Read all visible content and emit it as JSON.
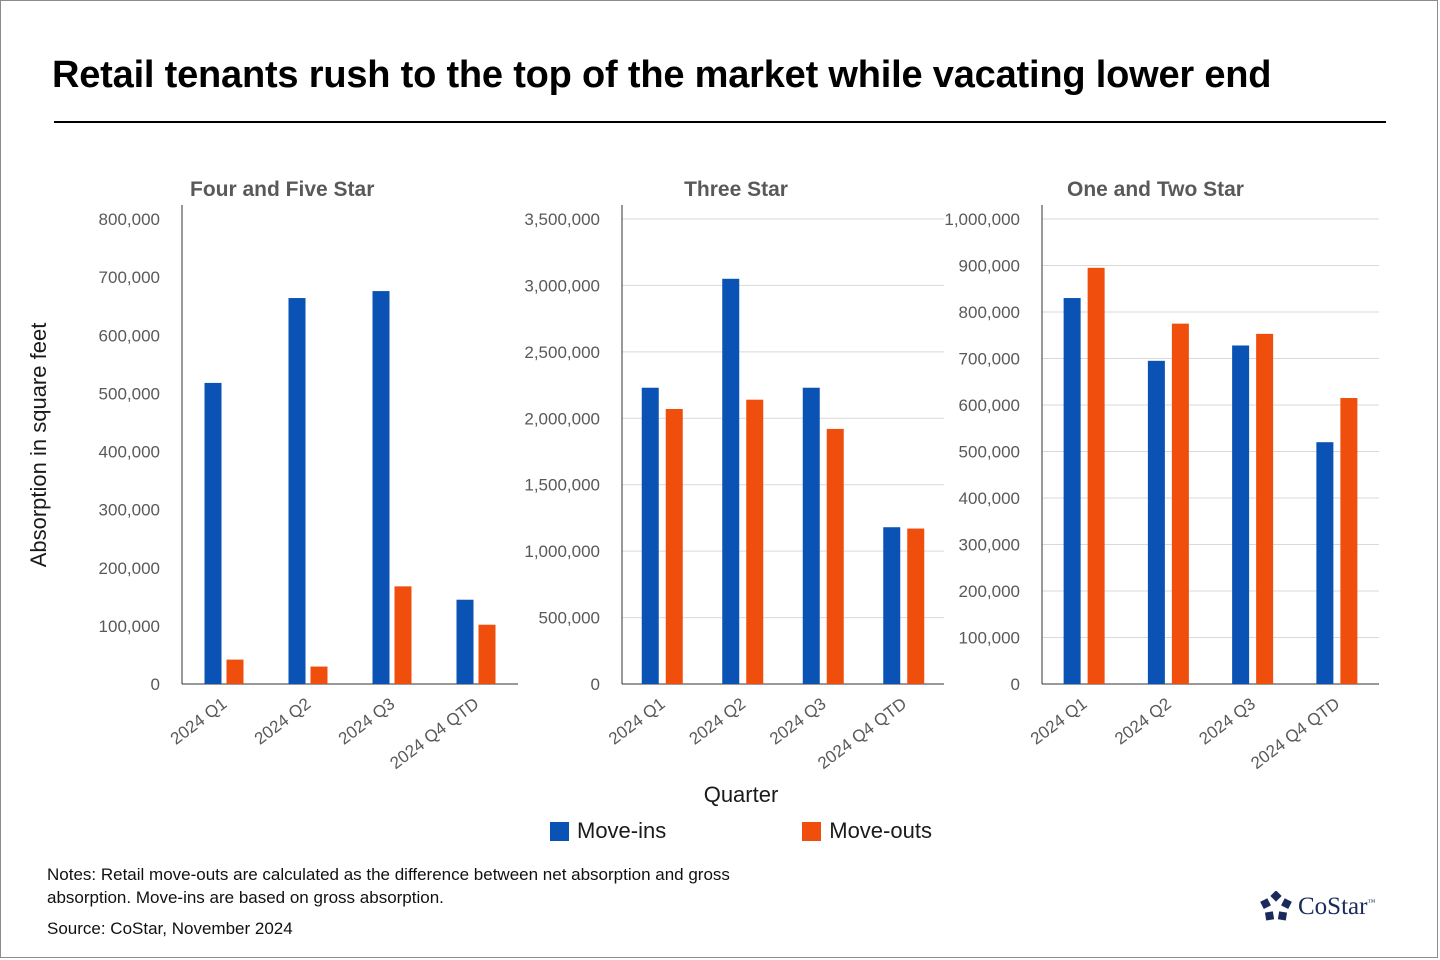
{
  "title": "Retail tenants rush to the top of the market while vacating lower end",
  "ylabel": "Absorption in square feet",
  "xlabel": "Quarter",
  "legend": [
    {
      "name": "Move-ins",
      "color": "#0a52b4"
    },
    {
      "name": "Move-outs",
      "color": "#f04e0c"
    }
  ],
  "notes": "Notes: Retail move-outs are calculated as the difference between net absorption and gross absorption. Move-ins are based on gross absorption.",
  "source": "Source: CoStar, November 2024",
  "logo": {
    "text": "CoStar",
    "tm": "™"
  },
  "chart_data": [
    {
      "type": "bar",
      "title": "Four and Five Star",
      "categories": [
        "2024 Q1",
        "2024 Q2",
        "2024 Q3",
        "2024 Q4 QTD"
      ],
      "series": [
        {
          "name": "Move-ins",
          "values": [
            518000,
            664000,
            676000,
            145000
          ]
        },
        {
          "name": "Move-outs",
          "values": [
            42000,
            30000,
            168000,
            102000
          ]
        }
      ],
      "ylim": [
        0,
        800000
      ],
      "yticks": [
        0,
        100000,
        200000,
        300000,
        400000,
        500000,
        600000,
        700000,
        800000
      ],
      "ytick_labels": [
        "0",
        "100,000",
        "200,000",
        "300,000",
        "400,000",
        "500,000",
        "600,000",
        "700,000",
        "800,000"
      ],
      "grid": false
    },
    {
      "type": "bar",
      "title": "Three Star",
      "categories": [
        "2024 Q1",
        "2024 Q2",
        "2024 Q3",
        "2024 Q4 QTD"
      ],
      "series": [
        {
          "name": "Move-ins",
          "values": [
            2230000,
            3050000,
            2230000,
            1180000
          ]
        },
        {
          "name": "Move-outs",
          "values": [
            2070000,
            2140000,
            1920000,
            1170000
          ]
        }
      ],
      "ylim": [
        0,
        3500000
      ],
      "yticks": [
        0,
        500000,
        1000000,
        1500000,
        2000000,
        2500000,
        3000000,
        3500000
      ],
      "ytick_labels": [
        "0",
        "500,000",
        "1,000,000",
        "1,500,000",
        "2,000,000",
        "2,500,000",
        "3,000,000",
        "3,500,000"
      ],
      "grid": true
    },
    {
      "type": "bar",
      "title": "One and Two Star",
      "categories": [
        "2024 Q1",
        "2024 Q2",
        "2024 Q3",
        "2024 Q4 QTD"
      ],
      "series": [
        {
          "name": "Move-ins",
          "values": [
            830000,
            695000,
            728000,
            520000
          ]
        },
        {
          "name": "Move-outs",
          "values": [
            895000,
            775000,
            753000,
            615000
          ]
        }
      ],
      "ylim": [
        0,
        1000000
      ],
      "yticks": [
        0,
        100000,
        200000,
        300000,
        400000,
        500000,
        600000,
        700000,
        800000,
        900000,
        1000000
      ],
      "ytick_labels": [
        "0",
        "100,000",
        "200,000",
        "300,000",
        "400,000",
        "500,000",
        "600,000",
        "700,000",
        "800,000",
        "900,000",
        "1,000,000"
      ],
      "grid": true
    }
  ]
}
